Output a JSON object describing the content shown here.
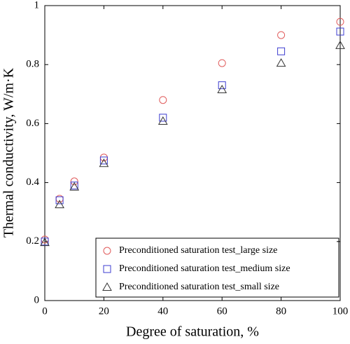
{
  "chart_data": {
    "type": "scatter",
    "xlabel": "Degree of saturation, %",
    "ylabel": "Thermal conductivity, W/m·K",
    "xlim": [
      0,
      100
    ],
    "ylim": [
      0,
      1
    ],
    "xticks": [
      0,
      20,
      40,
      60,
      80,
      100
    ],
    "yticks": [
      0,
      0.2,
      0.4,
      0.6,
      0.8,
      1
    ],
    "legend": "lower right",
    "series": [
      {
        "name": "Preconditioned saturation test_large size",
        "color": "#e05a5a",
        "marker": "circle",
        "x": [
          0,
          5,
          10,
          20,
          40,
          60,
          80,
          100
        ],
        "values": [
          0.207,
          0.345,
          0.404,
          0.485,
          0.68,
          0.805,
          0.9,
          0.945
        ]
      },
      {
        "name": "Preconditioned saturation test_medium size",
        "color": "#3c3cd0",
        "marker": "square",
        "x": [
          0,
          5,
          10,
          20,
          40,
          60,
          80,
          100
        ],
        "values": [
          0.2,
          0.34,
          0.39,
          0.475,
          0.62,
          0.73,
          0.845,
          0.912
        ]
      },
      {
        "name": "Preconditioned saturation test_small size",
        "color": "#333333",
        "marker": "triangle",
        "x": [
          0,
          5,
          10,
          20,
          40,
          60,
          80,
          100
        ],
        "values": [
          0.197,
          0.325,
          0.385,
          0.465,
          0.608,
          0.715,
          0.805,
          0.865
        ]
      }
    ]
  }
}
